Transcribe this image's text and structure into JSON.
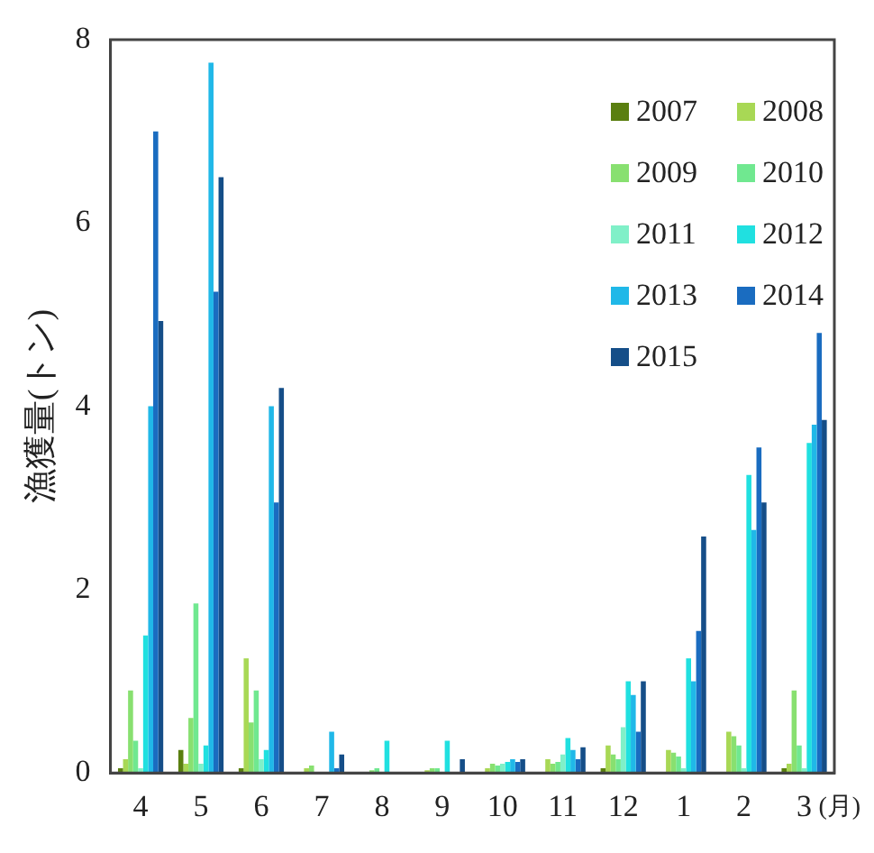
{
  "chart_data": {
    "type": "bar",
    "ylabel": "漁獲量(トン)",
    "annotations": [
      "(月)"
    ],
    "categories": [
      "4",
      "5",
      "6",
      "7",
      "8",
      "9",
      "10",
      "11",
      "12",
      "1",
      "2",
      "3"
    ],
    "ylim": [
      0,
      8
    ],
    "yticks": [
      0,
      2,
      4,
      6,
      8
    ],
    "grid": false,
    "legend": "top right",
    "series": [
      {
        "name": "2007",
        "color": "#5a7f10",
        "values": [
          0.05,
          0.25,
          0.05,
          0,
          0,
          0,
          0,
          0,
          0.05,
          0,
          0,
          0.05
        ]
      },
      {
        "name": "2008",
        "color": "#a8d855",
        "values": [
          0.15,
          0.1,
          1.25,
          0.05,
          0,
          0.03,
          0.05,
          0.15,
          0.3,
          0.25,
          0.45,
          0.1
        ]
      },
      {
        "name": "2009",
        "color": "#88e070",
        "values": [
          0.9,
          0.6,
          0.55,
          0.08,
          0.03,
          0.05,
          0.1,
          0.1,
          0.2,
          0.22,
          0.4,
          0.9
        ]
      },
      {
        "name": "2010",
        "color": "#70e890",
        "values": [
          0.35,
          1.85,
          0.9,
          0,
          0.05,
          0.05,
          0.08,
          0.12,
          0.15,
          0.18,
          0.3,
          0.3
        ]
      },
      {
        "name": "2011",
        "color": "#80f0c8",
        "values": [
          0.05,
          0.1,
          0.15,
          0,
          0,
          0,
          0.1,
          0.2,
          0.5,
          0.05,
          0.05,
          0.05
        ]
      },
      {
        "name": "2012",
        "color": "#20e0e0",
        "values": [
          1.5,
          0.3,
          0.25,
          0,
          0.35,
          0.35,
          0.12,
          0.38,
          1.0,
          1.25,
          3.25,
          3.6
        ]
      },
      {
        "name": "2013",
        "color": "#20b8e8",
        "values": [
          4.0,
          7.75,
          4.0,
          0.45,
          0,
          0,
          0.15,
          0.25,
          0.85,
          1.0,
          2.65,
          3.8
        ]
      },
      {
        "name": "2014",
        "color": "#1a6cc0",
        "values": [
          7.0,
          5.25,
          2.95,
          0.05,
          0,
          0,
          0.12,
          0.15,
          0.45,
          1.55,
          3.55,
          4.8
        ]
      },
      {
        "name": "2015",
        "color": "#154e88",
        "values": [
          4.93,
          6.5,
          4.2,
          0.2,
          0,
          0.15,
          0.15,
          0.28,
          1.0,
          2.58,
          2.95,
          3.85
        ]
      }
    ]
  }
}
